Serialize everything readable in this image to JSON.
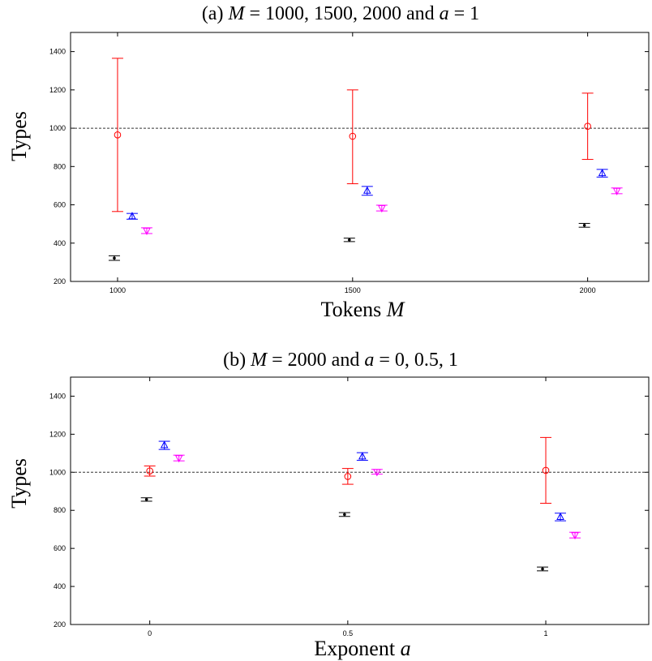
{
  "chart_data": [
    {
      "type": "scatter",
      "title_parts": [
        {
          "text": "(a) ",
          "italic": false
        },
        {
          "text": "M",
          "italic": true
        },
        {
          "text": " = 1000, 1500, 2000 and ",
          "italic": false
        },
        {
          "text": "a",
          "italic": true
        },
        {
          "text": " = 1",
          "italic": false
        }
      ],
      "xlabel_parts": [
        {
          "text": "Tokens ",
          "italic": false
        },
        {
          "text": "M",
          "italic": true
        }
      ],
      "ylabel": "Types",
      "xticks": [
        1000,
        1500,
        2000
      ],
      "xtick_labels": [
        "1000",
        "1500",
        "2000"
      ],
      "xlim": [
        900,
        2130
      ],
      "yticks": [
        200,
        400,
        600,
        800,
        1000,
        1200,
        1400
      ],
      "ytick_labels": [
        "200",
        "400",
        "600",
        "800",
        "1000",
        "1200",
        "1400"
      ],
      "ylim": [
        200,
        1500
      ],
      "reference_line": 1000,
      "grid": false,
      "series": [
        {
          "color": "#ff0000",
          "marker": "circle",
          "x_offset": 0,
          "points": [
            {
              "x": 1000,
              "y": 965,
              "low": 565,
              "high": 1365
            },
            {
              "x": 1500,
              "y": 958,
              "low": 710,
              "high": 1200
            },
            {
              "x": 2000,
              "y": 1010,
              "low": 837,
              "high": 1183
            }
          ]
        },
        {
          "color": "#0000ff",
          "marker": "triangle-up",
          "x_offset": 18,
          "points": [
            {
              "x": 1000,
              "y": 540,
              "low": 525,
              "high": 555
            },
            {
              "x": 1500,
              "y": 673,
              "low": 650,
              "high": 696
            },
            {
              "x": 2000,
              "y": 765,
              "low": 745,
              "high": 785
            }
          ]
        },
        {
          "color": "#ff00ff",
          "marker": "triangle-down",
          "x_offset": 36,
          "points": [
            {
              "x": 1000,
              "y": 465,
              "low": 450,
              "high": 480
            },
            {
              "x": 1500,
              "y": 583,
              "low": 568,
              "high": 598
            },
            {
              "x": 2000,
              "y": 673,
              "low": 658,
              "high": 688
            }
          ]
        },
        {
          "color": "#000000",
          "marker": "dot",
          "x_offset": -4,
          "points": [
            {
              "x": 1000,
              "y": 322,
              "low": 310,
              "high": 334
            },
            {
              "x": 1500,
              "y": 417,
              "low": 408,
              "high": 426
            },
            {
              "x": 2000,
              "y": 493,
              "low": 483,
              "high": 503
            }
          ]
        }
      ]
    },
    {
      "type": "scatter",
      "title_parts": [
        {
          "text": "(b) ",
          "italic": false
        },
        {
          "text": "M",
          "italic": true
        },
        {
          "text": " = 2000 and ",
          "italic": false
        },
        {
          "text": "a",
          "italic": true
        },
        {
          "text": " = 0, 0.5, 1",
          "italic": false
        }
      ],
      "xlabel_parts": [
        {
          "text": "Exponent ",
          "italic": false
        },
        {
          "text": "a",
          "italic": true
        }
      ],
      "ylabel": "Types",
      "xticks": [
        0,
        0.5,
        1
      ],
      "xtick_labels": [
        "0",
        "0.5",
        "1"
      ],
      "xlim": [
        -0.2,
        1.26
      ],
      "yticks": [
        200,
        400,
        600,
        800,
        1000,
        1200,
        1400
      ],
      "ytick_labels": [
        "200",
        "400",
        "600",
        "800",
        "1000",
        "1200",
        "1400"
      ],
      "ylim": [
        200,
        1500
      ],
      "reference_line": 1000,
      "grid": false,
      "series": [
        {
          "color": "#ff0000",
          "marker": "circle",
          "x_offset": 0,
          "points": [
            {
              "x": 0,
              "y": 1007,
              "low": 980,
              "high": 1033
            },
            {
              "x": 0.5,
              "y": 978,
              "low": 937,
              "high": 1020
            },
            {
              "x": 1,
              "y": 1010,
              "low": 837,
              "high": 1183
            }
          ]
        },
        {
          "color": "#0000ff",
          "marker": "triangle-up",
          "x_offset": 18,
          "points": [
            {
              "x": 0,
              "y": 1142,
              "low": 1120,
              "high": 1163
            },
            {
              "x": 0.5,
              "y": 1083,
              "low": 1063,
              "high": 1103
            },
            {
              "x": 1,
              "y": 765,
              "low": 745,
              "high": 785
            }
          ]
        },
        {
          "color": "#ff00ff",
          "marker": "triangle-down",
          "x_offset": 36,
          "points": [
            {
              "x": 0,
              "y": 1075,
              "low": 1060,
              "high": 1090
            },
            {
              "x": 0.5,
              "y": 1002,
              "low": 990,
              "high": 1015
            },
            {
              "x": 1,
              "y": 670,
              "low": 655,
              "high": 685
            }
          ]
        },
        {
          "color": "#000000",
          "marker": "dot",
          "x_offset": -4,
          "points": [
            {
              "x": 0,
              "y": 857,
              "low": 848,
              "high": 866
            },
            {
              "x": 0.5,
              "y": 778,
              "low": 768,
              "high": 788
            },
            {
              "x": 1,
              "y": 492,
              "low": 482,
              "high": 502
            }
          ]
        }
      ]
    }
  ]
}
